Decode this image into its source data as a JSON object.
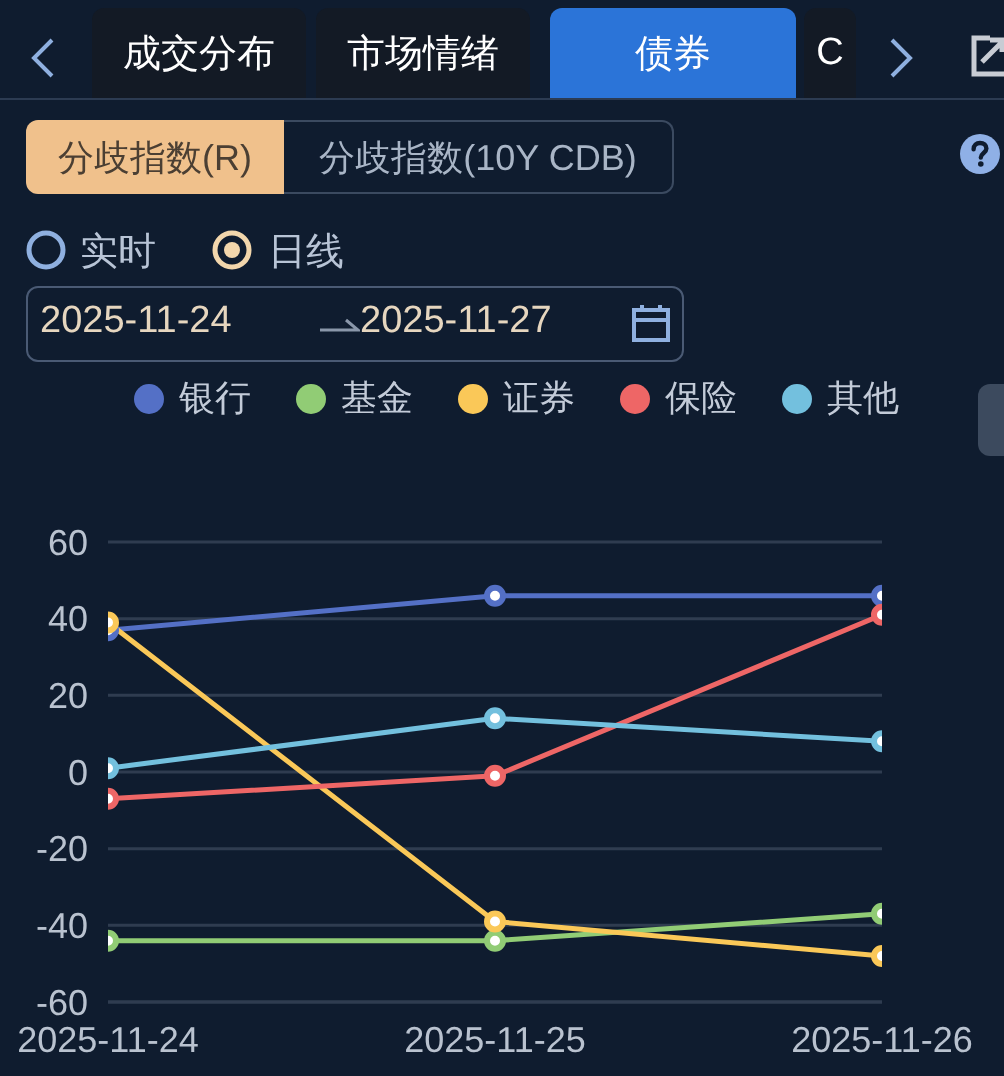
{
  "chart_data": {
    "type": "line",
    "categories": [
      "2025-11-24",
      "2025-11-25",
      "2025-11-26"
    ],
    "series": [
      {
        "name": "银行",
        "color": "#5470c6",
        "values": [
          37,
          46,
          46
        ]
      },
      {
        "name": "基金",
        "color": "#91cc75",
        "values": [
          -44,
          -44,
          -37
        ]
      },
      {
        "name": "证券",
        "color": "#fac858",
        "values": [
          39,
          -39,
          -48
        ]
      },
      {
        "name": "保险",
        "color": "#ee6666",
        "values": [
          -7,
          -1,
          41
        ]
      },
      {
        "name": "其他",
        "color": "#73c0de",
        "values": [
          1,
          14,
          8
        ]
      }
    ],
    "ylim": [
      -60,
      60
    ],
    "yticks": [
      -60,
      -40,
      -20,
      0,
      20,
      40,
      60
    ],
    "grid": "y",
    "legend": "top",
    "marker": "circle",
    "line_style": "solid",
    "annotations": [
      "成交分布",
      "市场情绪",
      "债券",
      "C",
      "分歧指数(R)",
      "分歧指数(10Y CDB)",
      "实时",
      "日线",
      "2025-11-24",
      "2025-11-27"
    ]
  }
}
